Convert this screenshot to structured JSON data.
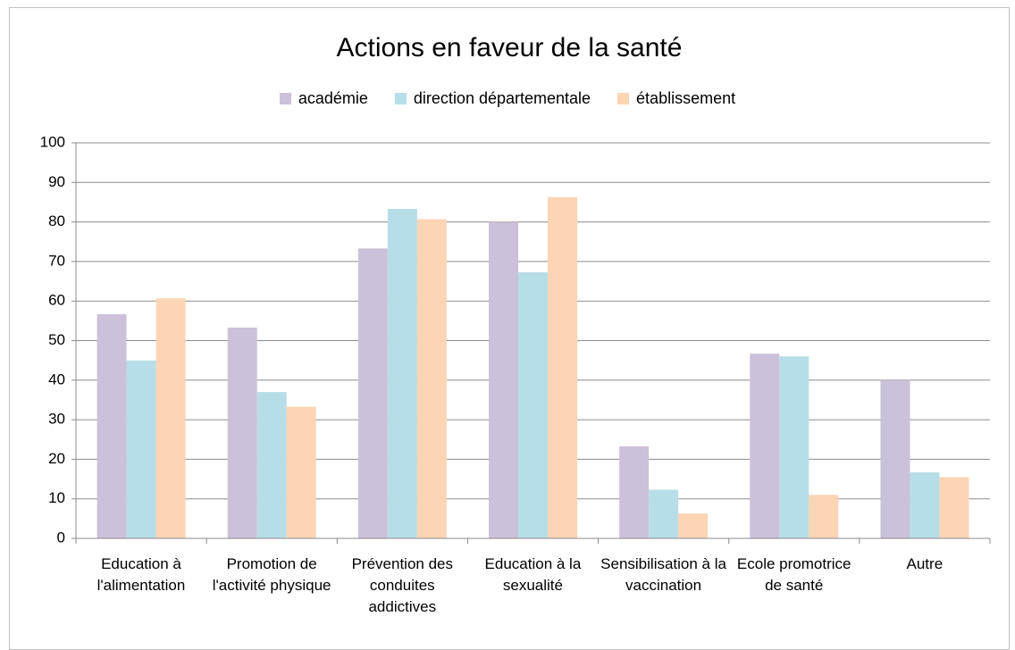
{
  "chart_data": {
    "type": "bar",
    "title": "Actions en faveur de la santé",
    "categories": [
      "Education à l'alimentation",
      "Promotion de l'activité physique",
      "Prévention des conduites addictives",
      "Education à la sexualité",
      "Sensibilisation à la vaccination",
      "Ecole promotrice de santé",
      "Autre"
    ],
    "series": [
      {
        "name": "académie",
        "color": "#ccc1da",
        "values": [
          56.7,
          53.3,
          73.3,
          80,
          23.3,
          46.7,
          40
        ]
      },
      {
        "name": "direction départementale",
        "color": "#b7dee8",
        "values": [
          45,
          37,
          83.3,
          67.3,
          12.3,
          46,
          16.7
        ]
      },
      {
        "name": "établissement",
        "color": "#fcd5b5",
        "values": [
          60.7,
          33.3,
          80.7,
          86.3,
          6.3,
          11,
          15.5
        ]
      }
    ],
    "ylim": [
      0,
      100
    ],
    "yticks": [
      0,
      10,
      20,
      30,
      40,
      50,
      60,
      70,
      80,
      90,
      100
    ],
    "grid": true,
    "legend": "top"
  }
}
